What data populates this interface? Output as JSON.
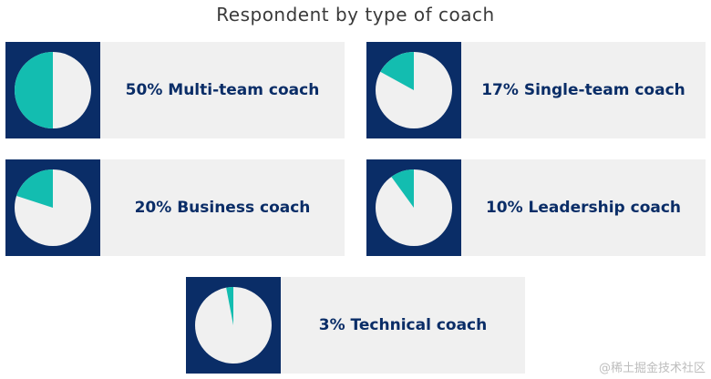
{
  "chart_data": {
    "type": "pie",
    "title": "Respondent by type of coach",
    "colors": {
      "slice": "#13bdb0",
      "remainder": "#f0f0f0",
      "box": "#0a2d67",
      "text": "#0a2d67"
    },
    "cards": [
      {
        "label": "50% Multi-team coach",
        "value": 50
      },
      {
        "label": "17% Single-team coach",
        "value": 17
      },
      {
        "label": "20% Business coach",
        "value": 20
      },
      {
        "label": "10% Leadership coach",
        "value": 10
      },
      {
        "label": "3% Technical coach",
        "value": 3
      }
    ]
  },
  "watermark": "@稀土掘金技术社区"
}
